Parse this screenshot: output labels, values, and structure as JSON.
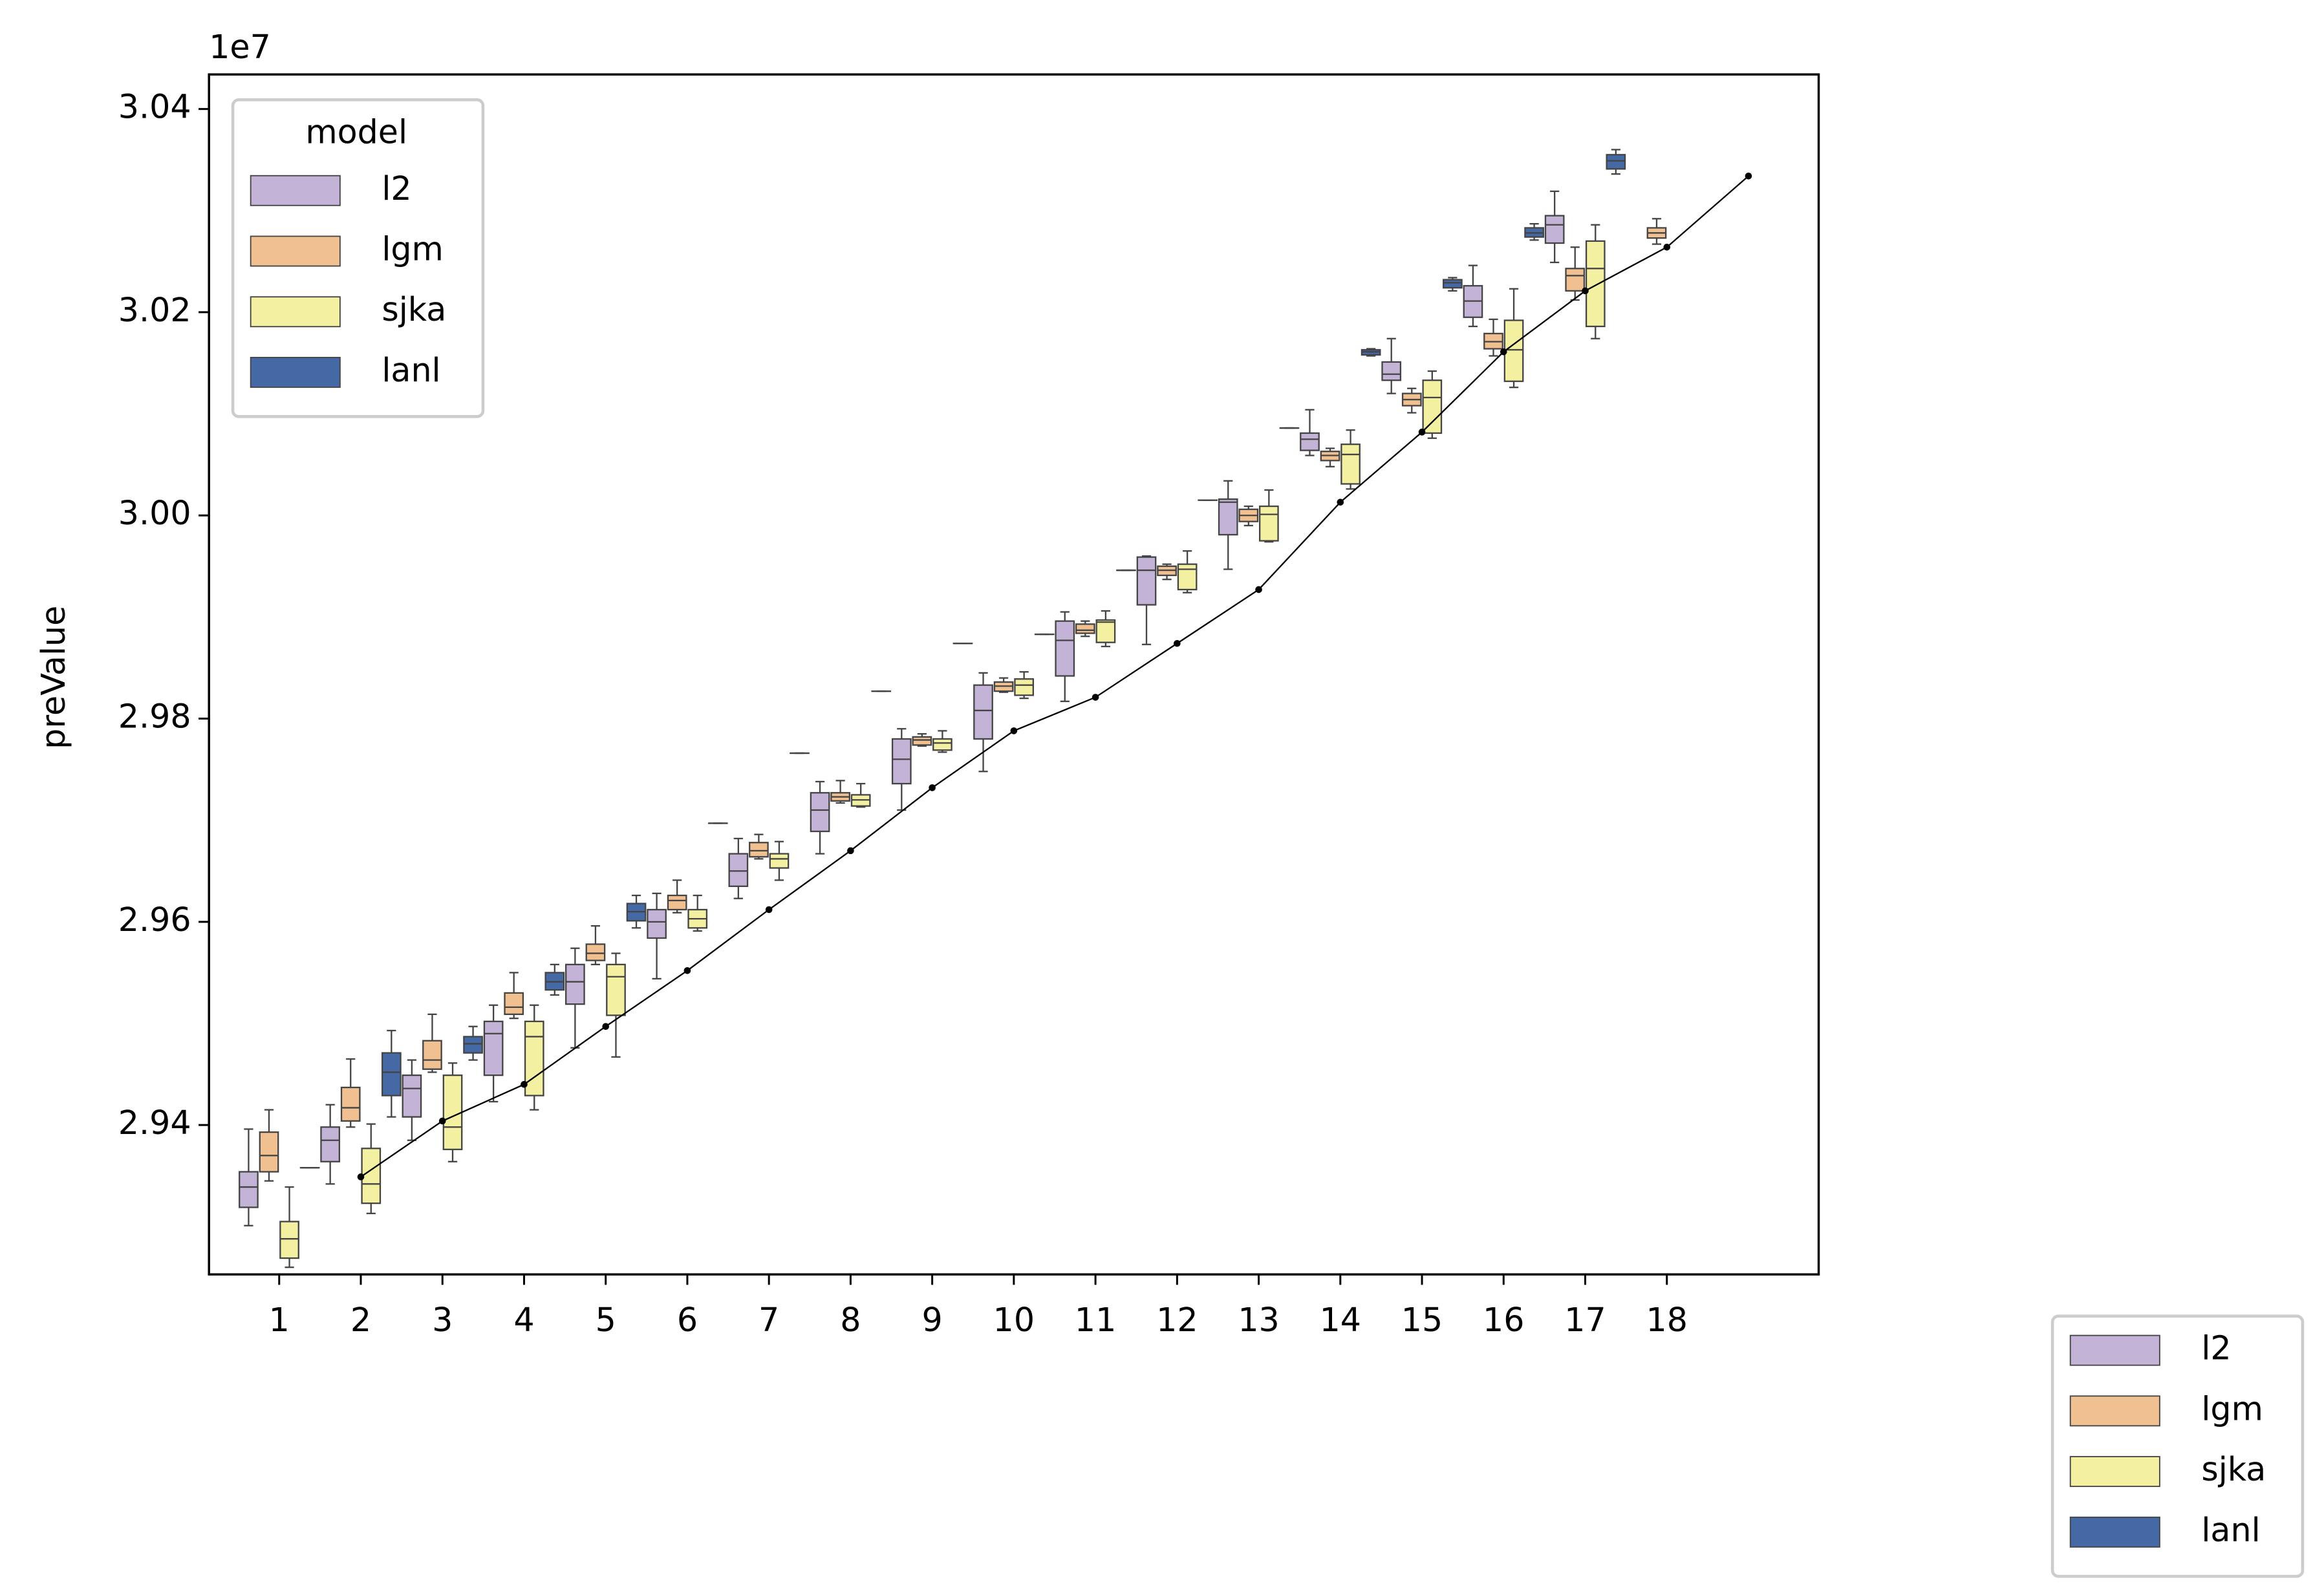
{
  "chart_data": {
    "type": "box",
    "y_label": "preValue",
    "y_offset_label": "1e7",
    "legend_title": "model",
    "legend": "upper left",
    "second_legend": "lower right outside",
    "categories": [
      "1",
      "2",
      "3",
      "4",
      "5",
      "6",
      "7",
      "8",
      "9",
      "10",
      "11",
      "12",
      "13",
      "14",
      "15",
      "16",
      "17",
      "18",
      null
    ],
    "ylim": [
      2.9253,
      3.0434
    ],
    "yticks": [
      2.94,
      2.96,
      2.98,
      {
        "value": 3.0,
        "label": "3.00"
      },
      3.02,
      3.04
    ],
    "edge_color": "#444444",
    "series": [
      {
        "name": "l2",
        "color": "#c3b3d6",
        "values": [
          [
            2.9301,
            2.9319,
            2.9339,
            2.9354,
            2.9396
          ],
          [
            2.9342,
            2.9364,
            2.9385,
            2.9398,
            2.942
          ],
          [
            2.9385,
            2.9408,
            2.9436,
            2.9449,
            2.9464
          ],
          [
            2.9423,
            2.9449,
            2.949,
            2.9502,
            2.9518
          ],
          [
            2.9476,
            2.9519,
            2.9541,
            2.9558,
            2.9574
          ],
          [
            2.9544,
            2.9584,
            2.96,
            2.9612,
            2.9628
          ],
          [
            2.9623,
            2.9635,
            2.965,
            2.9667,
            2.9682
          ],
          [
            2.9667,
            2.9689,
            2.971,
            2.9727,
            2.9738
          ],
          [
            2.971,
            2.9736,
            2.976,
            2.978,
            2.979
          ],
          [
            2.9748,
            2.978,
            2.9808,
            2.9833,
            2.9845
          ],
          [
            2.9817,
            2.9842,
            2.9877,
            2.9896,
            2.9905
          ],
          [
            2.9873,
            2.9912,
            2.9946,
            2.9959,
            2.996
          ],
          [
            2.9947,
            2.9981,
            3.0013,
            3.0016,
            3.0034
          ],
          [
            3.0059,
            3.0064,
            3.0075,
            3.0081,
            3.0104
          ],
          [
            3.012,
            3.0133,
            3.0139,
            3.0151,
            3.0174
          ],
          [
            3.0186,
            3.0195,
            3.0211,
            3.0226,
            3.0246
          ],
          [
            3.0249,
            3.0268,
            3.0286,
            3.0295,
            3.0319
          ],
          null,
          null
        ]
      },
      {
        "name": "lgm",
        "color": "#f0c090",
        "values": [
          [
            2.9345,
            2.9354,
            2.937,
            2.9393,
            2.9415
          ],
          [
            2.9398,
            2.9404,
            2.9417,
            2.9437,
            2.9465
          ],
          [
            2.9452,
            2.9455,
            2.9464,
            2.9483,
            2.9509
          ],
          [
            2.9505,
            2.9509,
            2.9516,
            2.953,
            2.955
          ],
          [
            2.9558,
            2.9562,
            2.9569,
            2.9578,
            2.9596
          ],
          [
            2.9609,
            2.9612,
            2.9621,
            2.9626,
            2.9641
          ],
          [
            2.9662,
            2.9664,
            2.967,
            2.9678,
            2.9686
          ],
          [
            2.9717,
            2.9719,
            2.9723,
            2.9727,
            2.9739
          ],
          [
            2.9773,
            2.9774,
            2.9779,
            2.9782,
            2.9785
          ],
          [
            2.9826,
            2.9827,
            2.9832,
            2.9836,
            2.984
          ],
          [
            2.9881,
            2.9884,
            2.9887,
            2.9893,
            2.9896
          ],
          [
            2.9937,
            2.9941,
            2.9946,
            2.995,
            2.9952
          ],
          [
            2.999,
            2.9994,
            3.0,
            3.0006,
            3.0009
          ],
          [
            3.0048,
            3.0054,
            3.0059,
            3.0063,
            3.0066
          ],
          [
            3.0101,
            3.0108,
            3.0114,
            3.012,
            3.0125
          ],
          [
            3.0157,
            3.0164,
            3.0171,
            3.0179,
            3.0193
          ],
          [
            3.0212,
            3.0221,
            3.0236,
            3.0243,
            3.0264
          ],
          [
            3.0267,
            3.0273,
            3.0278,
            3.0283,
            3.0292
          ],
          null
        ]
      },
      {
        "name": "sjka",
        "color": "#f3f1a1",
        "values": [
          [
            2.926,
            2.9269,
            2.9288,
            2.9305,
            2.9339
          ],
          [
            2.9313,
            2.9323,
            2.9342,
            2.9377,
            2.9401
          ],
          [
            2.9364,
            2.9376,
            2.9398,
            2.9449,
            2.9461
          ],
          [
            2.9415,
            2.9429,
            2.9487,
            2.9502,
            2.9518
          ],
          [
            2.9467,
            2.9508,
            2.9546,
            2.9558,
            2.9569
          ],
          [
            2.9591,
            2.9594,
            2.9603,
            2.9612,
            2.9626
          ],
          [
            2.9641,
            2.9653,
            2.9662,
            2.9667,
            2.9679
          ],
          [
            2.9713,
            2.9714,
            2.972,
            2.9725,
            2.9736
          ],
          [
            2.9767,
            2.9769,
            2.9776,
            2.978,
            2.9788
          ],
          [
            2.982,
            2.9823,
            2.9833,
            2.9839,
            2.9846
          ],
          [
            2.9871,
            2.9875,
            2.9895,
            2.9897,
            2.9906
          ],
          [
            2.9924,
            2.9927,
            2.9947,
            2.9952,
            2.9965
          ],
          [
            2.9974,
            2.9975,
            3.0001,
            3.0009,
            3.0025
          ],
          [
            3.0026,
            3.0031,
            3.006,
            3.007,
            3.0084
          ],
          [
            3.0076,
            3.0081,
            3.0116,
            3.0133,
            3.0142
          ],
          [
            3.0126,
            3.0132,
            3.0163,
            3.0192,
            3.0223
          ],
          [
            3.0174,
            3.0186,
            3.0243,
            3.027,
            3.0286
          ],
          null,
          null
        ]
      },
      {
        "name": "lanl",
        "color": "#4469a4",
        "values": [
          [
            2.9358,
            2.9358,
            2.9358,
            2.9358,
            2.9358
          ],
          [
            2.9408,
            2.9429,
            2.9452,
            2.9471,
            2.9493
          ],
          [
            2.9464,
            2.9471,
            2.948,
            2.9487,
            2.9497
          ],
          [
            2.9528,
            2.9533,
            2.9541,
            2.955,
            2.9558
          ],
          [
            2.9594,
            2.9601,
            2.961,
            2.9618,
            2.9626
          ],
          [
            2.9697,
            2.9697,
            2.9697,
            2.9697,
            2.9697
          ],
          [
            2.9766,
            2.9766,
            2.9766,
            2.9766,
            2.9766
          ],
          [
            2.9827,
            2.9827,
            2.9827,
            2.9827,
            2.9827
          ],
          [
            2.9874,
            2.9874,
            2.9874,
            2.9874,
            2.9874
          ],
          [
            2.9883,
            2.9883,
            2.9883,
            2.9883,
            2.9883
          ],
          [
            2.9946,
            2.9946,
            2.9946,
            2.9946,
            2.9946
          ],
          [
            3.0015,
            3.0015,
            3.0015,
            3.0015,
            3.0015
          ],
          [
            3.0086,
            3.0086,
            3.0086,
            3.0086,
            3.0086
          ],
          [
            3.0157,
            3.0158,
            3.0161,
            3.0163,
            3.0164
          ],
          [
            3.0221,
            3.0224,
            3.0229,
            3.0232,
            3.0234
          ],
          [
            3.0271,
            3.0274,
            3.0278,
            3.0283,
            3.0287
          ],
          [
            3.0336,
            3.0341,
            3.0349,
            3.0355,
            3.036
          ],
          null,
          null
        ]
      }
    ],
    "line_color": "#000000",
    "line_values": [
      null,
      2.9349,
      2.9404,
      2.944,
      2.9497,
      2.9552,
      2.9612,
      2.967,
      2.9732,
      2.9788,
      2.9821,
      2.9874,
      2.9927,
      3.0013,
      3.0082,
      3.0161,
      3.0221,
      3.0264,
      3.0334
    ]
  }
}
